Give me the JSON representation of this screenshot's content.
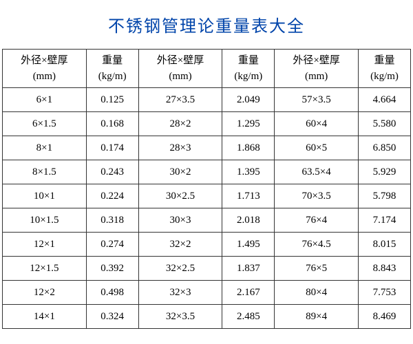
{
  "title": "不锈钢管理论重量表大全",
  "colors": {
    "title_color": "#0044aa",
    "border_color": "#333333",
    "background_color": "#ffffff",
    "text_color": "#000000"
  },
  "typography": {
    "title_fontsize": 24,
    "cell_fontsize": 15,
    "title_font": "SimHei",
    "body_font": "SimSun"
  },
  "type": "table",
  "header": {
    "col1_line1": "外径×壁厚",
    "col1_line2": "(mm)",
    "col2_line1": "重量",
    "col2_line2": "(kg/m)",
    "col3_line1": "外径×壁厚",
    "col3_line2": "(mm)",
    "col4_line1": "重量",
    "col4_line2": "(kg/m)",
    "col5_line1": "外径×壁厚",
    "col5_line2": "(mm)",
    "col6_line1": "重量",
    "col6_line2": "(kg/m)"
  },
  "rows": [
    {
      "c1": "6×1",
      "c2": "0.125",
      "c3": "27×3.5",
      "c4": "2.049",
      "c5": "57×3.5",
      "c6": "4.664"
    },
    {
      "c1": "6×1.5",
      "c2": "0.168",
      "c3": "28×2",
      "c4": "1.295",
      "c5": "60×4",
      "c6": "5.580"
    },
    {
      "c1": "8×1",
      "c2": "0.174",
      "c3": "28×3",
      "c4": "1.868",
      "c5": "60×5",
      "c6": "6.850"
    },
    {
      "c1": "8×1.5",
      "c2": "0.243",
      "c3": "30×2",
      "c4": "1.395",
      "c5": "63.5×4",
      "c6": "5.929"
    },
    {
      "c1": "10×1",
      "c2": "0.224",
      "c3": "30×2.5",
      "c4": "1.713",
      "c5": "70×3.5",
      "c6": "5.798"
    },
    {
      "c1": "10×1.5",
      "c2": "0.318",
      "c3": "30×3",
      "c4": "2.018",
      "c5": "76×4",
      "c6": "7.174"
    },
    {
      "c1": "12×1",
      "c2": "0.274",
      "c3": "32×2",
      "c4": "1.495",
      "c5": "76×4.5",
      "c6": "8.015"
    },
    {
      "c1": "12×1.5",
      "c2": "0.392",
      "c3": "32×2.5",
      "c4": "1.837",
      "c5": "76×5",
      "c6": "8.843"
    },
    {
      "c1": "12×2",
      "c2": "0.498",
      "c3": "32×3",
      "c4": "2.167",
      "c5": "80×4",
      "c6": "7.753"
    },
    {
      "c1": "14×1",
      "c2": "0.324",
      "c3": "32×3.5",
      "c4": "2.485",
      "c5": "89×4",
      "c6": "8.469"
    }
  ]
}
